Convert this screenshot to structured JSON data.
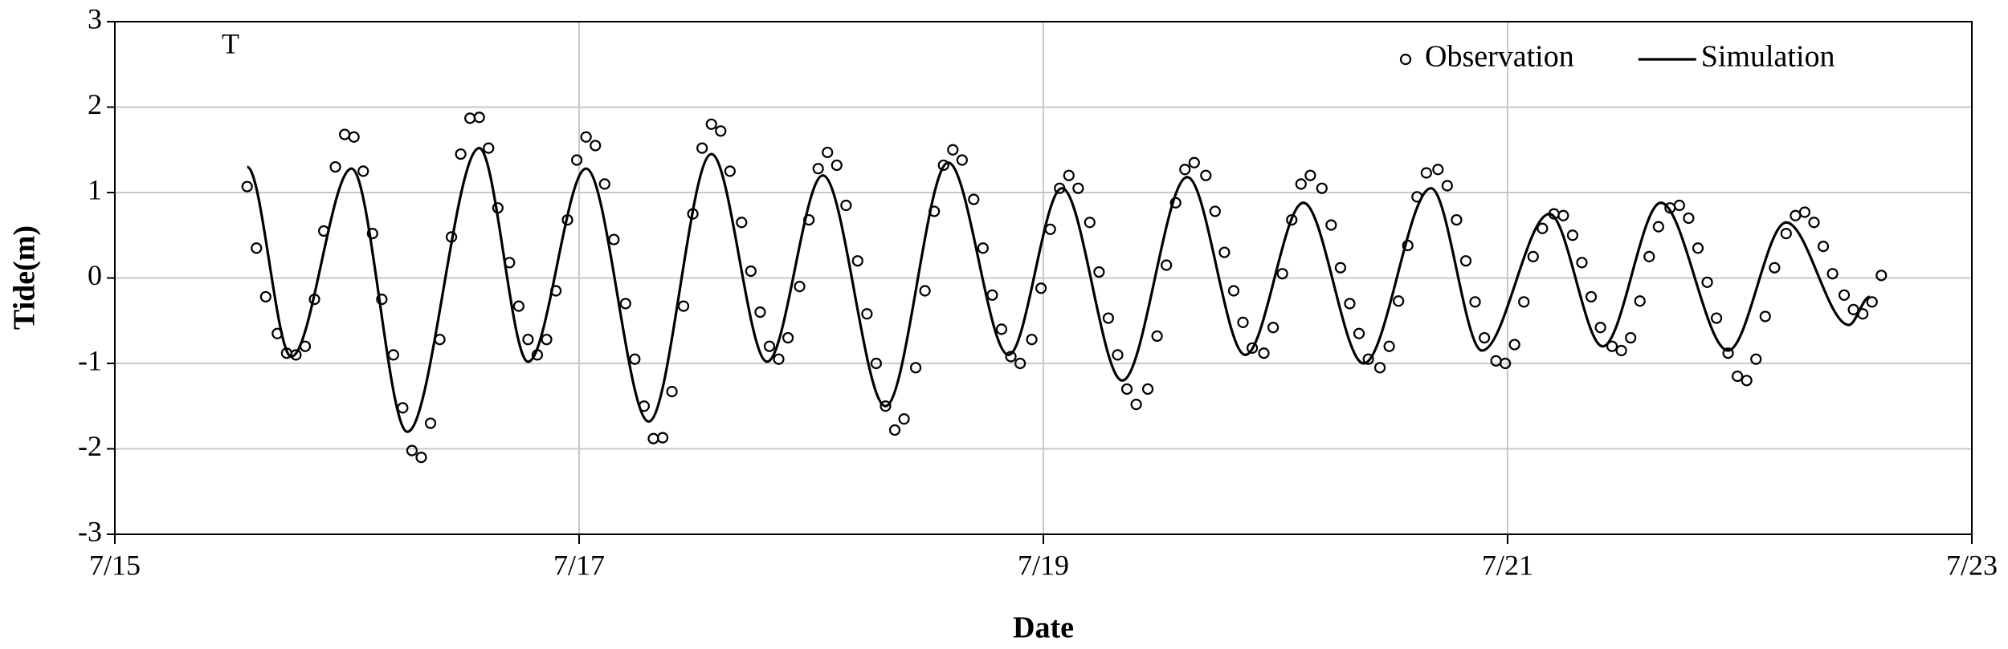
{
  "chart_data": {
    "type": "line",
    "annotation": "T",
    "x_label": "Date",
    "y_label": "Tide(m)",
    "xlim": [
      15,
      23
    ],
    "xticks": [
      {
        "value": 15,
        "label": "7/15"
      },
      {
        "value": 17,
        "label": "7/17"
      },
      {
        "value": 19,
        "label": "7/19"
      },
      {
        "value": 21,
        "label": "7/21"
      },
      {
        "value": 23,
        "label": "7/23"
      }
    ],
    "ylim": [
      -3,
      3
    ],
    "yticks": [
      -3,
      -2,
      -1,
      0,
      1,
      2,
      3
    ],
    "grid": true,
    "legend": "top-right",
    "series": [
      {
        "name": "Observation",
        "type": "scatter",
        "color": "#000000",
        "x": [
          15.57,
          15.61,
          15.65,
          15.7,
          15.74,
          15.78,
          15.82,
          15.86,
          15.9,
          15.95,
          15.99,
          16.03,
          16.07,
          16.11,
          16.15,
          16.2,
          16.24,
          16.28,
          16.32,
          16.36,
          16.4,
          16.45,
          16.49,
          16.53,
          16.57,
          16.61,
          16.65,
          16.7,
          16.74,
          16.78,
          16.82,
          16.86,
          16.9,
          16.95,
          16.99,
          17.03,
          17.07,
          17.11,
          17.15,
          17.2,
          17.24,
          17.28,
          17.32,
          17.36,
          17.4,
          17.45,
          17.49,
          17.53,
          17.57,
          17.61,
          17.65,
          17.7,
          17.74,
          17.78,
          17.82,
          17.86,
          17.9,
          17.95,
          17.99,
          18.03,
          18.07,
          18.11,
          18.15,
          18.2,
          18.24,
          18.28,
          18.32,
          18.36,
          18.4,
          18.45,
          18.49,
          18.53,
          18.57,
          18.61,
          18.65,
          18.7,
          18.74,
          18.78,
          18.82,
          18.86,
          18.9,
          18.95,
          18.99,
          19.03,
          19.07,
          19.11,
          19.15,
          19.2,
          19.24,
          19.28,
          19.32,
          19.36,
          19.4,
          19.45,
          19.49,
          19.53,
          19.57,
          19.61,
          19.65,
          19.7,
          19.74,
          19.78,
          19.82,
          19.86,
          19.9,
          19.95,
          19.99,
          20.03,
          20.07,
          20.11,
          20.15,
          20.2,
          20.24,
          20.28,
          20.32,
          20.36,
          20.4,
          20.45,
          20.49,
          20.53,
          20.57,
          20.61,
          20.65,
          20.7,
          20.74,
          20.78,
          20.82,
          20.86,
          20.9,
          20.95,
          20.99,
          21.03,
          21.07,
          21.11,
          21.15,
          21.2,
          21.24,
          21.28,
          21.32,
          21.36,
          21.4,
          21.45,
          21.49,
          21.53,
          21.57,
          21.61,
          21.65,
          21.7,
          21.74,
          21.78,
          21.82,
          21.86,
          21.9,
          21.95,
          21.99,
          22.03,
          22.07,
          22.11,
          22.15,
          22.2,
          22.24,
          22.28,
          22.32,
          22.36,
          22.4,
          22.45,
          22.49,
          22.53,
          22.57,
          22.61
        ],
        "values": [
          1.07,
          0.35,
          -0.22,
          -0.65,
          -0.88,
          -0.9,
          -0.8,
          -0.25,
          0.55,
          1.3,
          1.68,
          1.65,
          1.25,
          0.52,
          -0.25,
          -0.9,
          -1.52,
          -2.02,
          -2.1,
          -1.7,
          -0.72,
          0.48,
          1.45,
          1.87,
          1.88,
          1.52,
          0.82,
          0.18,
          -0.33,
          -0.72,
          -0.9,
          -0.72,
          -0.15,
          0.68,
          1.38,
          1.65,
          1.55,
          1.1,
          0.45,
          -0.3,
          -0.95,
          -1.5,
          -1.88,
          -1.87,
          -1.33,
          -0.33,
          0.75,
          1.52,
          1.8,
          1.72,
          1.25,
          0.65,
          0.08,
          -0.4,
          -0.8,
          -0.95,
          -0.7,
          -0.1,
          0.68,
          1.28,
          1.47,
          1.32,
          0.85,
          0.2,
          -0.42,
          -1.0,
          -1.5,
          -1.78,
          -1.65,
          -1.05,
          -0.15,
          0.78,
          1.32,
          1.5,
          1.38,
          0.92,
          0.35,
          -0.2,
          -0.6,
          -0.92,
          -1.0,
          -0.72,
          -0.12,
          0.57,
          1.05,
          1.2,
          1.05,
          0.65,
          0.07,
          -0.47,
          -0.9,
          -1.3,
          -1.48,
          -1.3,
          -0.68,
          0.15,
          0.88,
          1.27,
          1.35,
          1.2,
          0.78,
          0.3,
          -0.15,
          -0.52,
          -0.82,
          -0.88,
          -0.58,
          0.05,
          0.68,
          1.1,
          1.2,
          1.05,
          0.62,
          0.12,
          -0.3,
          -0.65,
          -0.95,
          -1.05,
          -0.8,
          -0.27,
          0.38,
          0.95,
          1.23,
          1.27,
          1.08,
          0.68,
          0.2,
          -0.28,
          -0.7,
          -0.97,
          -1.0,
          -0.78,
          -0.28,
          0.25,
          0.58,
          0.75,
          0.73,
          0.5,
          0.18,
          -0.22,
          -0.58,
          -0.8,
          -0.85,
          -0.7,
          -0.27,
          0.25,
          0.6,
          0.82,
          0.85,
          0.7,
          0.35,
          -0.05,
          -0.47,
          -0.88,
          -1.15,
          -1.2,
          -0.95,
          -0.45,
          0.12,
          0.52,
          0.73,
          0.77,
          0.65,
          0.37,
          0.05,
          -0.2,
          -0.37,
          -0.42,
          -0.28,
          0.03
        ]
      },
      {
        "name": "Simulation",
        "type": "line",
        "color": "#000000",
        "x": [
          15.57,
          15.76,
          16.02,
          16.26,
          16.57,
          16.78,
          17.03,
          17.3,
          17.57,
          17.81,
          18.05,
          18.32,
          18.59,
          18.85,
          19.08,
          19.34,
          19.62,
          19.87,
          20.12,
          20.38,
          20.67,
          20.89,
          21.18,
          21.41,
          21.66,
          21.95,
          22.2,
          22.47,
          22.56
        ],
        "values": [
          1.3,
          -0.92,
          1.28,
          -1.8,
          1.52,
          -0.98,
          1.28,
          -1.68,
          1.45,
          -0.98,
          1.2,
          -1.5,
          1.35,
          -0.9,
          1.05,
          -1.2,
          1.18,
          -0.9,
          0.88,
          -1.0,
          1.05,
          -0.85,
          0.75,
          -0.8,
          0.88,
          -0.85,
          0.65,
          -0.55,
          -0.22
        ]
      }
    ]
  }
}
